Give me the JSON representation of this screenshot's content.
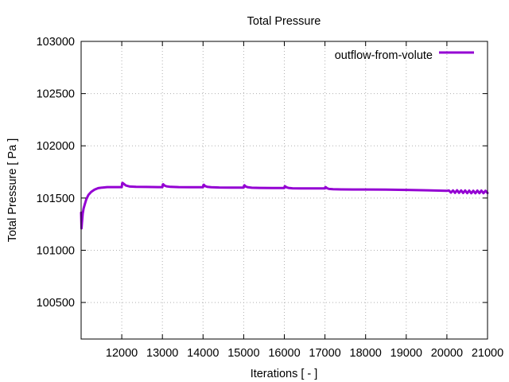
{
  "chart_data": {
    "type": "line",
    "title": "Total Pressure",
    "xlabel": "Iterations [ - ]",
    "ylabel": "Total Pressure [ Pa ]",
    "xlim": [
      11000,
      21000
    ],
    "ylim": [
      100150,
      103000
    ],
    "xticks": [
      12000,
      13000,
      14000,
      15000,
      16000,
      17000,
      18000,
      19000,
      20000,
      21000
    ],
    "yticks": [
      100500,
      101000,
      101500,
      102000,
      102500,
      103000
    ],
    "xtick_labels": [
      "12000",
      "13000",
      "14000",
      "15000",
      "16000",
      "17000",
      "18000",
      "19000",
      "20000",
      "21000"
    ],
    "ytick_labels": [
      "100500",
      "101000",
      "101500",
      "102000",
      "102500",
      "103000"
    ],
    "grid": true,
    "legend_position": "top-right",
    "series": [
      {
        "name": "outflow-from-volute",
        "color": "#9400d3",
        "x": [
          11000,
          11010,
          11020,
          11040,
          11060,
          11090,
          11130,
          11180,
          11250,
          11330,
          11420,
          11520,
          11640,
          11780,
          11950,
          12000,
          12010,
          12020,
          12050,
          12100,
          12200,
          12350,
          12600,
          12900,
          13000,
          13010,
          13020,
          13050,
          13100,
          13200,
          13400,
          13700,
          14000,
          14010,
          14020,
          14050,
          14100,
          14200,
          14400,
          14700,
          15000,
          15010,
          15020,
          15050,
          15100,
          15200,
          15400,
          15700,
          16000,
          16010,
          16020,
          16050,
          16100,
          16200,
          16400,
          16700,
          17000,
          17010,
          17020,
          17050,
          17100,
          17200,
          17400,
          17700,
          18000,
          18500,
          19000,
          19500,
          20000,
          20050,
          20100,
          20150,
          20200,
          20250,
          20300,
          20350,
          20400,
          20450,
          20500,
          20550,
          20600,
          20650,
          20700,
          20750,
          20800,
          20850,
          20900,
          20950,
          21000
        ],
        "y": [
          101360,
          101210,
          101260,
          101350,
          101400,
          101440,
          101490,
          101530,
          101560,
          101580,
          101595,
          101600,
          101605,
          101605,
          101605,
          101605,
          101640,
          101645,
          101635,
          101620,
          101610,
          101607,
          101606,
          101605,
          101605,
          101630,
          101632,
          101620,
          101612,
          101607,
          101605,
          101604,
          101604,
          101625,
          101627,
          101615,
          101608,
          101603,
          101601,
          101600,
          101600,
          101620,
          101622,
          101610,
          101603,
          101599,
          101597,
          101596,
          101596,
          101612,
          101613,
          101603,
          101597,
          101593,
          101592,
          101592,
          101592,
          101605,
          101604,
          101594,
          101587,
          101584,
          101583,
          101582,
          101582,
          101580,
          101578,
          101574,
          101570,
          101572,
          101552,
          101573,
          101550,
          101574,
          101550,
          101573,
          101548,
          101572,
          101547,
          101571,
          101546,
          101570,
          101546,
          101571,
          101547,
          101571,
          101546,
          101570,
          101548
        ]
      }
    ]
  }
}
